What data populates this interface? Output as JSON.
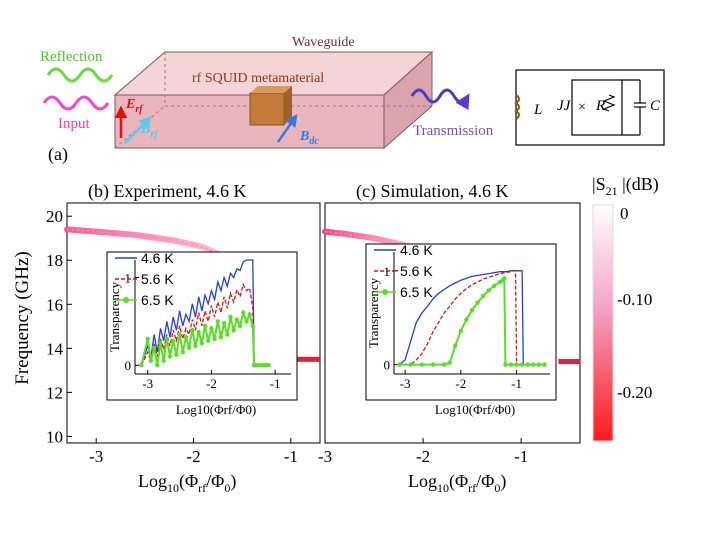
{
  "panel_a": {
    "label": "(a)",
    "waveguide": "Waveguide",
    "metamaterial": "rf SQUID  metamaterial",
    "reflection": "Reflection",
    "input": "Input",
    "transmission": "Transmission",
    "e_rf": "E",
    "e_rf_sub": "rf",
    "b_rf": "B",
    "b_rf_sub": "rf",
    "b_dc": "B",
    "b_dc_sub": "dc",
    "circuit": {
      "L": "L",
      "JJ": "JJ",
      "R": "R",
      "C": "C"
    }
  },
  "colorbar": {
    "title": "|S",
    "title_sub": "21",
    "title_end": " |(dB)",
    "ticks": [
      "0",
      "-0.10",
      "-0.20"
    ],
    "colors": {
      "top": "#ffffff",
      "mid": "#f2a0c4",
      "bottom": "#ff1a1a"
    }
  },
  "shared": {
    "ylabel": "Frequency (GHz)",
    "xlabel": "Log",
    "xlabel_sub": "10",
    "xlabel_rest": "(Φ",
    "xlabel_rf": "rf",
    "xlabel_mid": "/Φ",
    "xlabel_0": "0",
    "xlabel_end": ")"
  },
  "chart_data": [
    {
      "id": "b",
      "type": "heatmap",
      "title": "(b) Experiment, 4.6 K",
      "xlim": [
        -3.3,
        -0.7
      ],
      "ylim": [
        9.7,
        20.6
      ],
      "xticks": [
        -3,
        -2,
        -1
      ],
      "xtick_labels": [
        "-3",
        "-2",
        "-1"
      ],
      "yticks": [
        10,
        12,
        14,
        16,
        18,
        20
      ],
      "ytick_labels": [
        "10",
        "12",
        "14",
        "16",
        "18",
        "20"
      ],
      "color_scale_db": [
        0,
        -0.25
      ],
      "resonance": {
        "x": [
          -3.3,
          -3.0,
          -2.6,
          -2.2,
          -1.9,
          -1.5,
          -1.42
        ],
        "y": [
          19.4,
          19.3,
          19.15,
          18.9,
          18.6,
          17.8,
          17.4
        ]
      },
      "flat_band": {
        "x": [
          -1.35,
          -0.7
        ],
        "y": 13.5
      },
      "inset": {
        "type": "line",
        "xlabel": "Log10(Φrf/Φ0)",
        "ylabel": "Transparency",
        "xlim": [
          -3.2,
          -0.75
        ],
        "ylim": [
          -0.1,
          1.2
        ],
        "xticks": [
          -3,
          -2,
          -1
        ],
        "xtick_labels": [
          "-3",
          "-2",
          "-1"
        ],
        "yticks": [
          0,
          1
        ],
        "ytick_labels": [
          "0",
          "1"
        ],
        "legend": [
          "4.6 K",
          "5.6 K",
          "6.5 K"
        ],
        "series": [
          {
            "name": "4.6 K",
            "color": "#1f3fe0",
            "x": [
              -3.1,
              -3.0,
              -2.95,
              -2.9,
              -2.85,
              -2.8,
              -2.75,
              -2.7,
              -2.65,
              -2.6,
              -2.55,
              -2.5,
              -2.45,
              -2.4,
              -2.35,
              -2.3,
              -2.25,
              -2.2,
              -2.15,
              -2.1,
              -2.05,
              -2.0,
              -1.95,
              -1.9,
              -1.85,
              -1.8,
              -1.75,
              -1.7,
              -1.65,
              -1.6,
              -1.55,
              -1.5,
              -1.45,
              -1.4,
              -1.35,
              -1.33,
              -1.3,
              -1.1
            ],
            "y": [
              0.0,
              0.22,
              0.08,
              0.35,
              0.15,
              0.42,
              0.28,
              0.5,
              0.32,
              0.55,
              0.4,
              0.62,
              0.45,
              0.58,
              0.5,
              0.7,
              0.55,
              0.78,
              0.62,
              0.8,
              0.7,
              0.85,
              0.75,
              0.95,
              0.85,
              1.0,
              0.9,
              1.05,
              1.0,
              1.1,
              1.08,
              1.18,
              1.2,
              1.2,
              1.2,
              0.0,
              0.0,
              0.0
            ]
          },
          {
            "name": "5.6 K",
            "color": "#e01010",
            "x": [
              -3.1,
              -3.0,
              -2.95,
              -2.9,
              -2.85,
              -2.8,
              -2.75,
              -2.7,
              -2.65,
              -2.6,
              -2.55,
              -2.5,
              -2.45,
              -2.4,
              -2.35,
              -2.3,
              -2.25,
              -2.2,
              -2.15,
              -2.1,
              -2.05,
              -2.0,
              -1.95,
              -1.9,
              -1.85,
              -1.8,
              -1.75,
              -1.7,
              -1.65,
              -1.6,
              -1.55,
              -1.5,
              -1.45,
              -1.4,
              -1.35,
              -1.33,
              -1.3,
              -1.1
            ],
            "y": [
              0.0,
              0.15,
              0.05,
              0.25,
              0.1,
              0.3,
              0.18,
              0.35,
              0.22,
              0.4,
              0.28,
              0.45,
              0.3,
              0.42,
              0.35,
              0.52,
              0.4,
              0.6,
              0.45,
              0.62,
              0.5,
              0.68,
              0.55,
              0.72,
              0.6,
              0.78,
              0.65,
              0.82,
              0.72,
              0.86,
              0.78,
              0.92,
              0.85,
              0.88,
              0.65,
              0.0,
              0.0,
              0.0
            ]
          },
          {
            "name": "6.5 K",
            "color": "#55e020",
            "x": [
              -3.1,
              -3.0,
              -2.95,
              -2.9,
              -2.85,
              -2.8,
              -2.75,
              -2.7,
              -2.65,
              -2.6,
              -2.55,
              -2.5,
              -2.45,
              -2.4,
              -2.35,
              -2.3,
              -2.25,
              -2.2,
              -2.15,
              -2.1,
              -2.05,
              -2.0,
              -1.95,
              -1.9,
              -1.85,
              -1.8,
              -1.75,
              -1.7,
              -1.65,
              -1.6,
              -1.55,
              -1.5,
              -1.45,
              -1.4,
              -1.35,
              -1.33,
              -1.3,
              -1.25,
              -1.2,
              -1.15,
              -1.1
            ],
            "y": [
              0.0,
              0.3,
              0.05,
              0.2,
              0.0,
              0.25,
              0.05,
              0.3,
              0.1,
              0.28,
              0.12,
              0.35,
              0.15,
              0.32,
              0.2,
              0.4,
              0.22,
              0.38,
              0.25,
              0.45,
              0.28,
              0.42,
              0.3,
              0.5,
              0.32,
              0.48,
              0.35,
              0.55,
              0.4,
              0.52,
              0.45,
              0.6,
              0.5,
              0.58,
              0.45,
              0.0,
              0.0,
              0.0,
              0.0,
              0.0,
              0.0
            ]
          }
        ]
      }
    },
    {
      "id": "c",
      "type": "heatmap",
      "title": "(c) Simulation, 4.6 K",
      "xlim": [
        -3.0,
        -0.4
      ],
      "ylim": [
        9.7,
        20.6
      ],
      "xticks": [
        -3,
        -2,
        -1
      ],
      "xtick_labels": [
        "-3",
        "-2",
        "-1"
      ],
      "color_scale_db": [
        0,
        -0.25
      ],
      "resonance": {
        "x": [
          -3.0,
          -2.8,
          -2.5,
          -2.2,
          -1.9,
          -1.6,
          -1.3
        ],
        "y": [
          19.3,
          19.2,
          19.0,
          18.7,
          18.3,
          17.6,
          16.8
        ]
      },
      "flat_band": {
        "x": [
          -0.62,
          -0.4
        ],
        "y": 13.4
      },
      "inset": {
        "type": "line",
        "xlabel": "Log10(Φrf/Φ0)",
        "ylabel": "Transparency",
        "xlim": [
          -3.2,
          -0.4
        ],
        "ylim": [
          -0.1,
          1.2
        ],
        "xticks": [
          -3,
          -2,
          -1
        ],
        "xtick_labels": [
          "-3",
          "-2",
          "-1"
        ],
        "yticks": [
          0,
          1
        ],
        "ytick_labels": [
          "0",
          "1"
        ],
        "legend": [
          "4.6 K",
          "5.6 K",
          "6.5 K"
        ],
        "series": [
          {
            "name": "4.6 K",
            "color": "#1f3fe0",
            "x": [
              -3.1,
              -3.0,
              -2.9,
              -2.8,
              -2.7,
              -2.6,
              -2.5,
              -2.4,
              -2.3,
              -2.2,
              -2.1,
              -2.0,
              -1.9,
              -1.8,
              -1.7,
              -1.6,
              -1.5,
              -1.4,
              -1.3,
              -1.2,
              -1.1,
              -1.0,
              -0.95,
              -0.9,
              -0.88,
              -0.7,
              -0.5
            ],
            "y": [
              0.0,
              0.05,
              0.25,
              0.45,
              0.55,
              0.62,
              0.7,
              0.76,
              0.8,
              0.84,
              0.87,
              0.9,
              0.92,
              0.94,
              0.95,
              0.96,
              0.97,
              0.98,
              0.99,
              0.99,
              1.0,
              1.0,
              1.0,
              1.0,
              0.0,
              0.0,
              0.0
            ]
          },
          {
            "name": "5.6 K",
            "color": "#e01010",
            "x": [
              -3.1,
              -2.9,
              -2.8,
              -2.7,
              -2.6,
              -2.5,
              -2.4,
              -2.3,
              -2.2,
              -2.1,
              -2.0,
              -1.9,
              -1.8,
              -1.7,
              -1.6,
              -1.5,
              -1.4,
              -1.3,
              -1.2,
              -1.1,
              -1.05,
              -1.02,
              -1.0,
              -0.7,
              -0.5
            ],
            "y": [
              0.0,
              0.0,
              0.05,
              0.12,
              0.22,
              0.35,
              0.45,
              0.55,
              0.62,
              0.7,
              0.76,
              0.81,
              0.85,
              0.88,
              0.91,
              0.93,
              0.95,
              0.97,
              0.98,
              0.99,
              1.0,
              1.0,
              0.0,
              0.0,
              0.0
            ]
          },
          {
            "name": "6.5 K",
            "color": "#55e020",
            "x": [
              -3.1,
              -2.9,
              -2.7,
              -2.5,
              -2.3,
              -2.2,
              -2.1,
              -2.0,
              -1.9,
              -1.8,
              -1.7,
              -1.6,
              -1.5,
              -1.4,
              -1.3,
              -1.25,
              -1.22,
              -1.2,
              -1.1,
              -1.0,
              -0.9,
              -0.8,
              -0.7,
              -0.6,
              -0.5
            ],
            "y": [
              0.0,
              0.0,
              0.0,
              0.0,
              0.0,
              0.02,
              0.2,
              0.36,
              0.48,
              0.58,
              0.66,
              0.73,
              0.79,
              0.84,
              0.88,
              0.9,
              0.92,
              0.0,
              0.0,
              0.0,
              0.0,
              0.0,
              0.0,
              0.0,
              0.0
            ]
          }
        ]
      }
    }
  ]
}
